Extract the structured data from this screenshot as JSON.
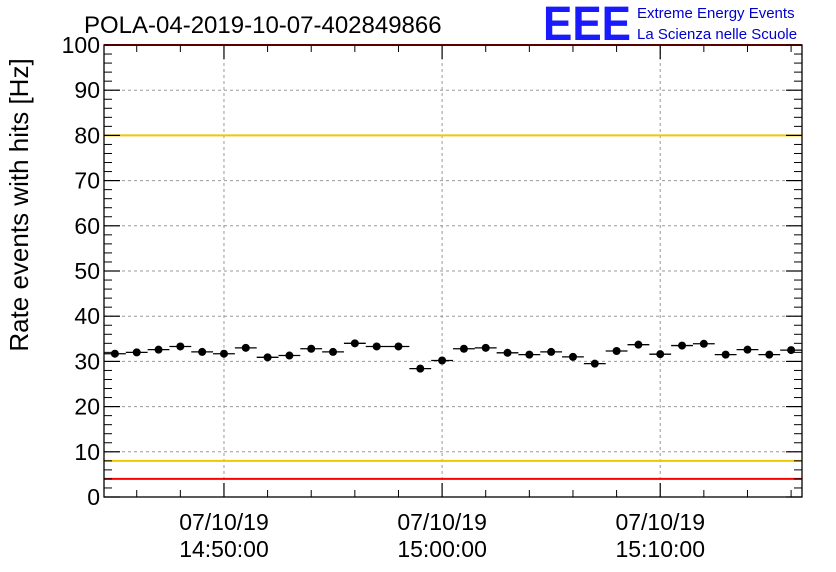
{
  "chart_data": {
    "type": "scatter",
    "title": "POLA-04-2019-10-07-402849866",
    "xlabel": "",
    "ylabel": "Rate events with hits [Hz]",
    "ylim": [
      0,
      100
    ],
    "xlim": [
      "07/10/19 14:44:30",
      "07/10/19 15:16:30"
    ],
    "yticks": [
      0,
      10,
      20,
      30,
      40,
      50,
      60,
      70,
      80,
      90,
      100
    ],
    "xticks": [
      {
        "date": "07/10/19",
        "time": "14:50:00"
      },
      {
        "date": "07/10/19",
        "time": "15:00:00"
      },
      {
        "date": "07/10/19",
        "time": "15:10:00"
      }
    ],
    "grid": true,
    "x": [
      "14:45:00",
      "14:46:00",
      "14:47:00",
      "14:48:00",
      "14:49:00",
      "14:50:00",
      "14:51:00",
      "14:52:00",
      "14:53:00",
      "14:54:00",
      "14:55:00",
      "14:56:00",
      "14:57:00",
      "14:58:00",
      "14:59:00",
      "15:00:00",
      "15:01:00",
      "15:02:00",
      "15:03:00",
      "15:04:00",
      "15:05:00",
      "15:06:00",
      "15:07:00",
      "15:08:00",
      "15:09:00",
      "15:10:00",
      "15:11:00",
      "15:12:00",
      "15:13:00",
      "15:14:00",
      "15:15:00",
      "15:16:00"
    ],
    "values": [
      31.7,
      32.0,
      32.6,
      33.3,
      32.1,
      31.7,
      33.0,
      30.9,
      31.3,
      32.8,
      32.1,
      34.0,
      33.3,
      33.3,
      28.4,
      30.2,
      32.8,
      33.0,
      31.9,
      31.5,
      32.1,
      31.0,
      29.5,
      32.3,
      33.7,
      31.6,
      33.5,
      33.9,
      31.5,
      32.6,
      31.5,
      32.5
    ],
    "bin_width_minutes": 1,
    "reference_lines": [
      {
        "y": 100,
        "color": "#ff0000"
      },
      {
        "y": 80,
        "color": "#f0c800"
      },
      {
        "y": 8,
        "color": "#f0c800"
      },
      {
        "y": 4,
        "color": "#ff0000"
      }
    ]
  },
  "logo": {
    "mark": "EEE",
    "line1": "Extreme Energy Events",
    "line2": "La Scienza nelle Scuole",
    "color": "#1a1aff"
  },
  "marker_color": "#000000"
}
